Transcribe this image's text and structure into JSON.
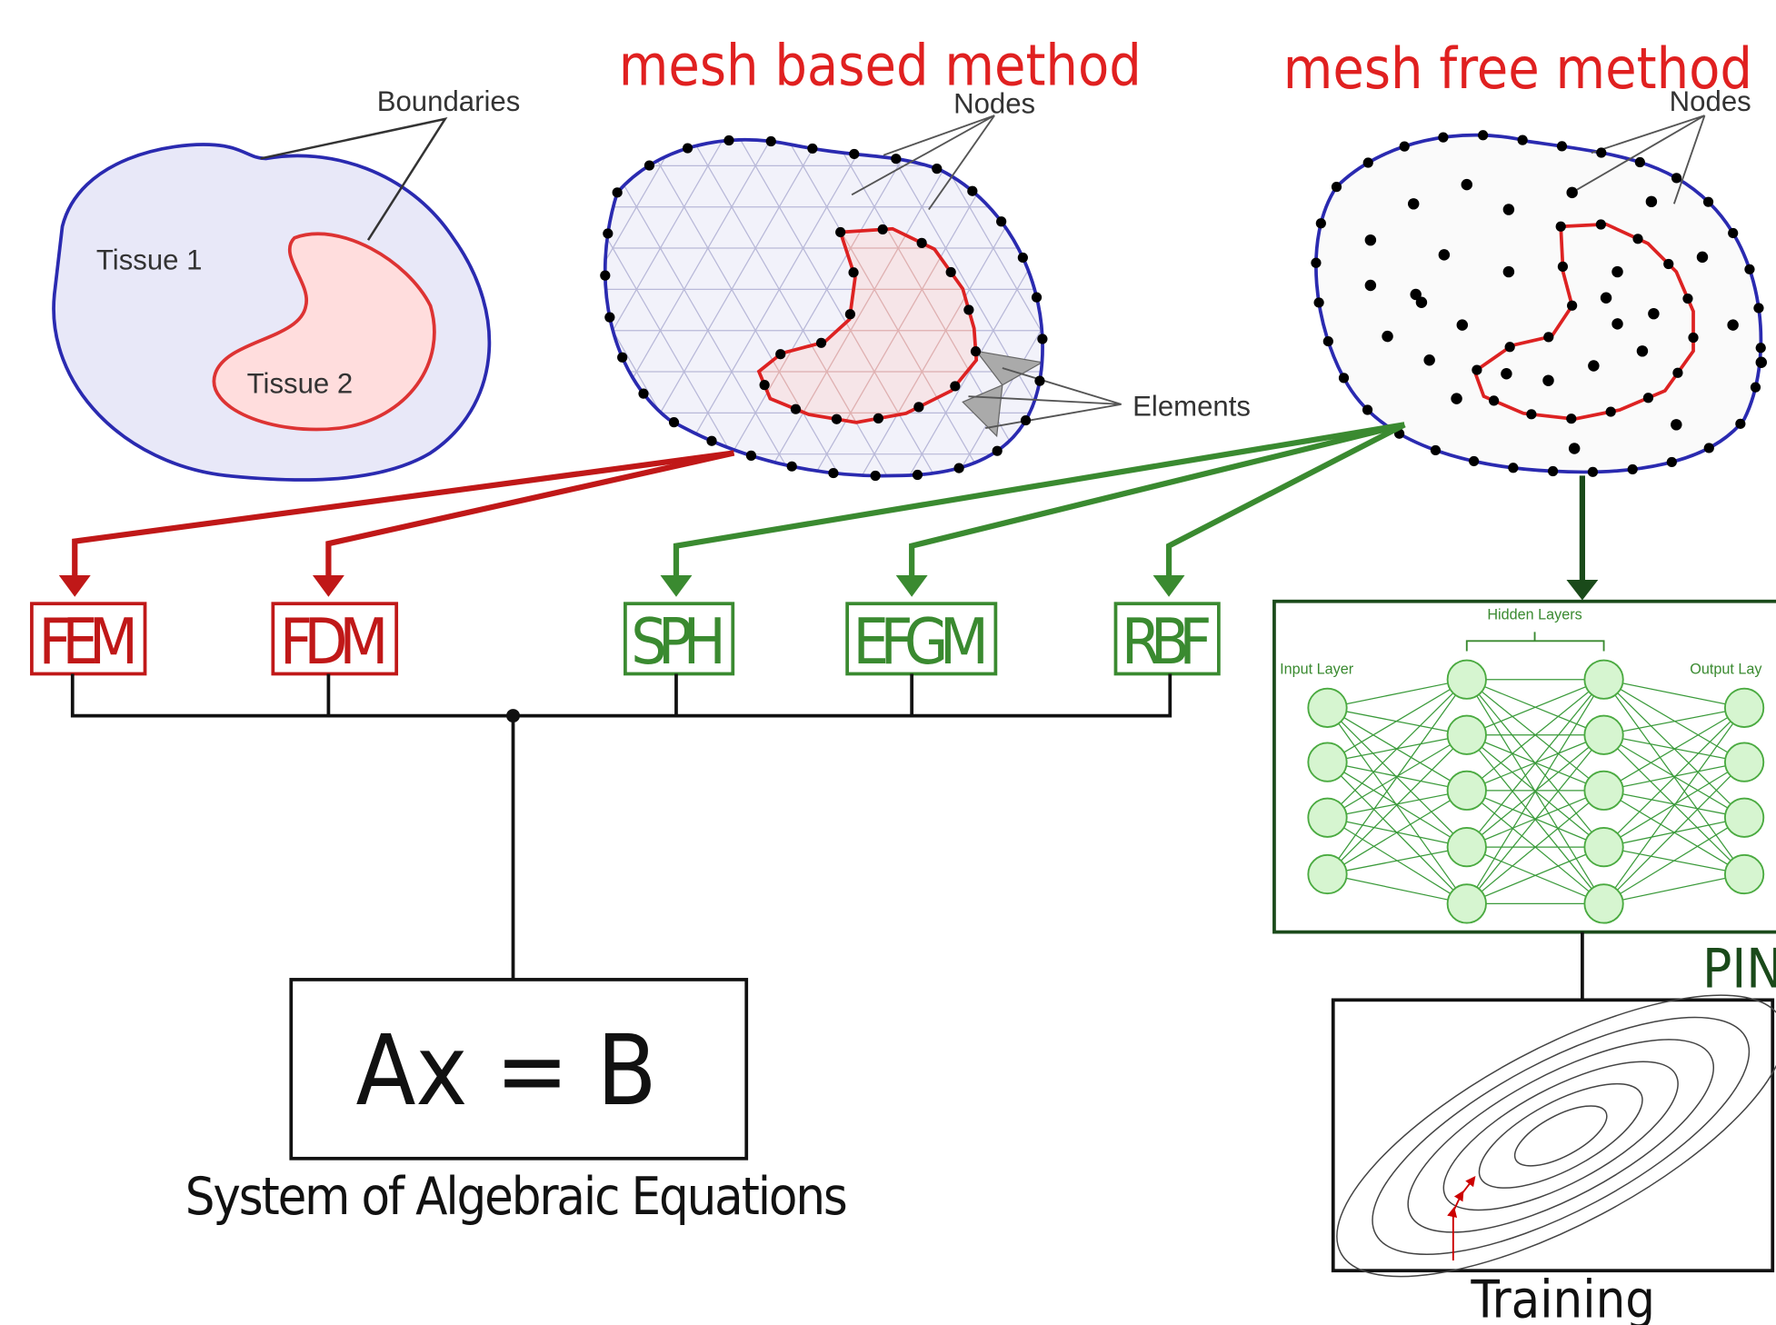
{
  "titles": {
    "mesh_based": "mesh based method",
    "mesh_free": "mesh free method"
  },
  "left_panel": {
    "boundaries": "Boundaries",
    "tissue1": "Tissue 1",
    "tissue2": "Tissue 2"
  },
  "mesh_panel": {
    "nodes": "Nodes",
    "elements": "Elements"
  },
  "free_panel": {
    "nodes": "Nodes"
  },
  "methods": [
    "FEM",
    "FDM",
    "SPH",
    "EFGM",
    "RBF"
  ],
  "equation": {
    "formula": "Ax = B",
    "caption": "System of Algebraic Equations"
  },
  "network": {
    "hidden": "Hidden Layers",
    "input": "Input Layer",
    "output": "Output Lay",
    "label": "PIN"
  },
  "training": "Training"
}
